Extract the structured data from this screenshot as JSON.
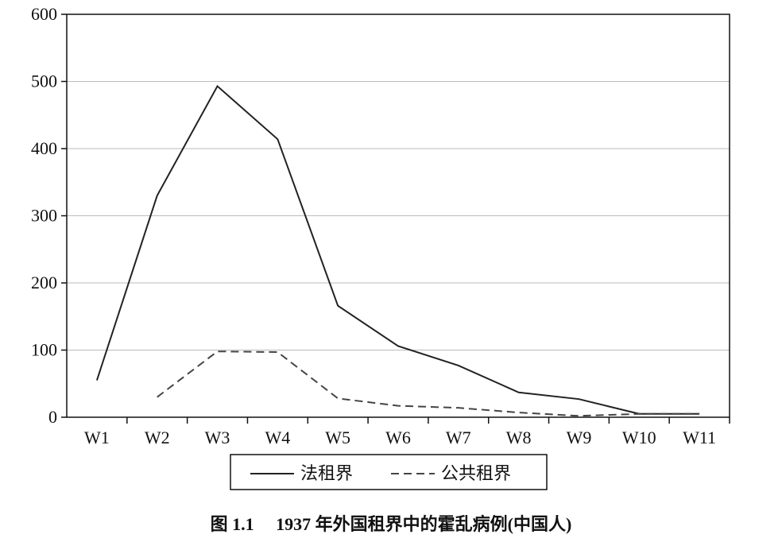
{
  "chart_data": {
    "type": "line",
    "title": "",
    "xlabel": "",
    "ylabel": "",
    "categories": [
      "W1",
      "W2",
      "W3",
      "W4",
      "W5",
      "W6",
      "W7",
      "W8",
      "W9",
      "W10",
      "W11"
    ],
    "ylim": [
      0,
      600
    ],
    "yticks": [
      0,
      100,
      200,
      300,
      400,
      500,
      600
    ],
    "grid": "horizontal",
    "legend_position": "bottom",
    "series": [
      {
        "name": "法租界",
        "style": "solid",
        "color": "#222222",
        "values": [
          55,
          330,
          493,
          414,
          166,
          106,
          77,
          37,
          27,
          5,
          5
        ]
      },
      {
        "name": "公共租界",
        "style": "dashed",
        "color": "#444444",
        "values": [
          null,
          30,
          98,
          97,
          28,
          17,
          14,
          7,
          2,
          5,
          5
        ]
      }
    ]
  },
  "caption": "图 1.1　 1937 年外国租界中的霍乱病例(中国人)"
}
